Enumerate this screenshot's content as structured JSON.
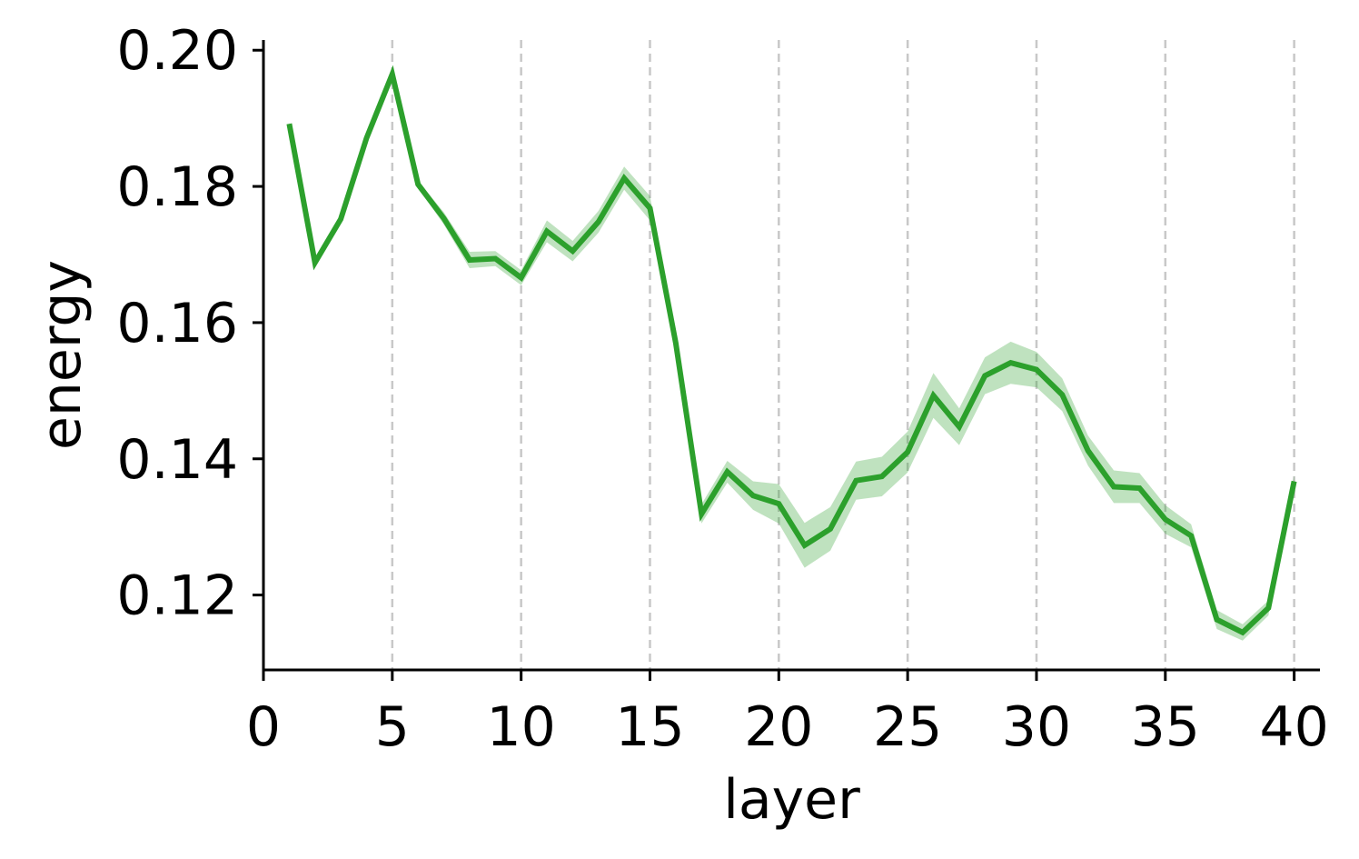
{
  "chart_data": {
    "type": "line",
    "xlabel": "layer",
    "ylabel": "energy",
    "xlim": [
      0,
      41
    ],
    "ylim": [
      0.109,
      0.2015
    ],
    "xticks": [
      "0",
      "5",
      "10",
      "15",
      "20",
      "25",
      "30",
      "35",
      "40"
    ],
    "yticks": [
      "0.12",
      "0.14",
      "0.16",
      "0.18",
      "0.20"
    ],
    "vertical_grid_at": [
      5,
      10,
      15,
      20,
      25,
      30,
      35,
      40
    ],
    "grid": "vertical dashed",
    "colors": {
      "line": "#2ca02c",
      "band": "#2ca02c",
      "grid": "#c8c8c8",
      "axis": "#000000"
    },
    "series": [
      {
        "x": [
          1,
          2,
          3,
          4,
          5,
          6,
          7,
          8,
          9,
          10,
          11,
          12,
          13,
          14,
          15,
          16,
          17,
          18,
          19,
          20,
          21,
          22,
          23,
          24,
          25,
          26,
          27,
          28,
          29,
          30,
          31,
          32,
          33,
          34,
          35,
          36,
          37,
          38,
          39,
          40
        ],
        "values": [
          0.1892,
          0.1688,
          0.1752,
          0.1871,
          0.1965,
          0.1803,
          0.1753,
          0.1692,
          0.1694,
          0.1666,
          0.1734,
          0.1705,
          0.1748,
          0.1812,
          0.1768,
          0.157,
          0.1319,
          0.1381,
          0.1346,
          0.1334,
          0.1273,
          0.1297,
          0.1368,
          0.1374,
          0.141,
          0.1493,
          0.1447,
          0.1522,
          0.1541,
          0.1531,
          0.1494,
          0.1412,
          0.1359,
          0.1357,
          0.1311,
          0.1287,
          0.1164,
          0.1145,
          0.1181,
          0.1367
        ],
        "lower": [
          0.189,
          0.1686,
          0.175,
          0.1869,
          0.1962,
          0.1798,
          0.1744,
          0.168,
          0.1683,
          0.1655,
          0.1718,
          0.169,
          0.1732,
          0.1795,
          0.175,
          0.1555,
          0.1305,
          0.1365,
          0.1325,
          0.1305,
          0.124,
          0.1265,
          0.134,
          0.1345,
          0.138,
          0.146,
          0.142,
          0.1495,
          0.151,
          0.1505,
          0.147,
          0.139,
          0.1335,
          0.1335,
          0.129,
          0.127,
          0.115,
          0.1133,
          0.117,
          0.1358
        ],
        "upper": [
          0.1894,
          0.169,
          0.1754,
          0.1873,
          0.1968,
          0.1808,
          0.1762,
          0.1704,
          0.1705,
          0.1677,
          0.175,
          0.172,
          0.1764,
          0.1829,
          0.1786,
          0.1585,
          0.1333,
          0.1397,
          0.1367,
          0.1363,
          0.1306,
          0.1329,
          0.1396,
          0.1403,
          0.144,
          0.1526,
          0.1474,
          0.1549,
          0.1572,
          0.1557,
          0.1518,
          0.1434,
          0.1383,
          0.1379,
          0.1332,
          0.1304,
          0.1178,
          0.1157,
          0.1192,
          0.1376
        ]
      }
    ]
  }
}
